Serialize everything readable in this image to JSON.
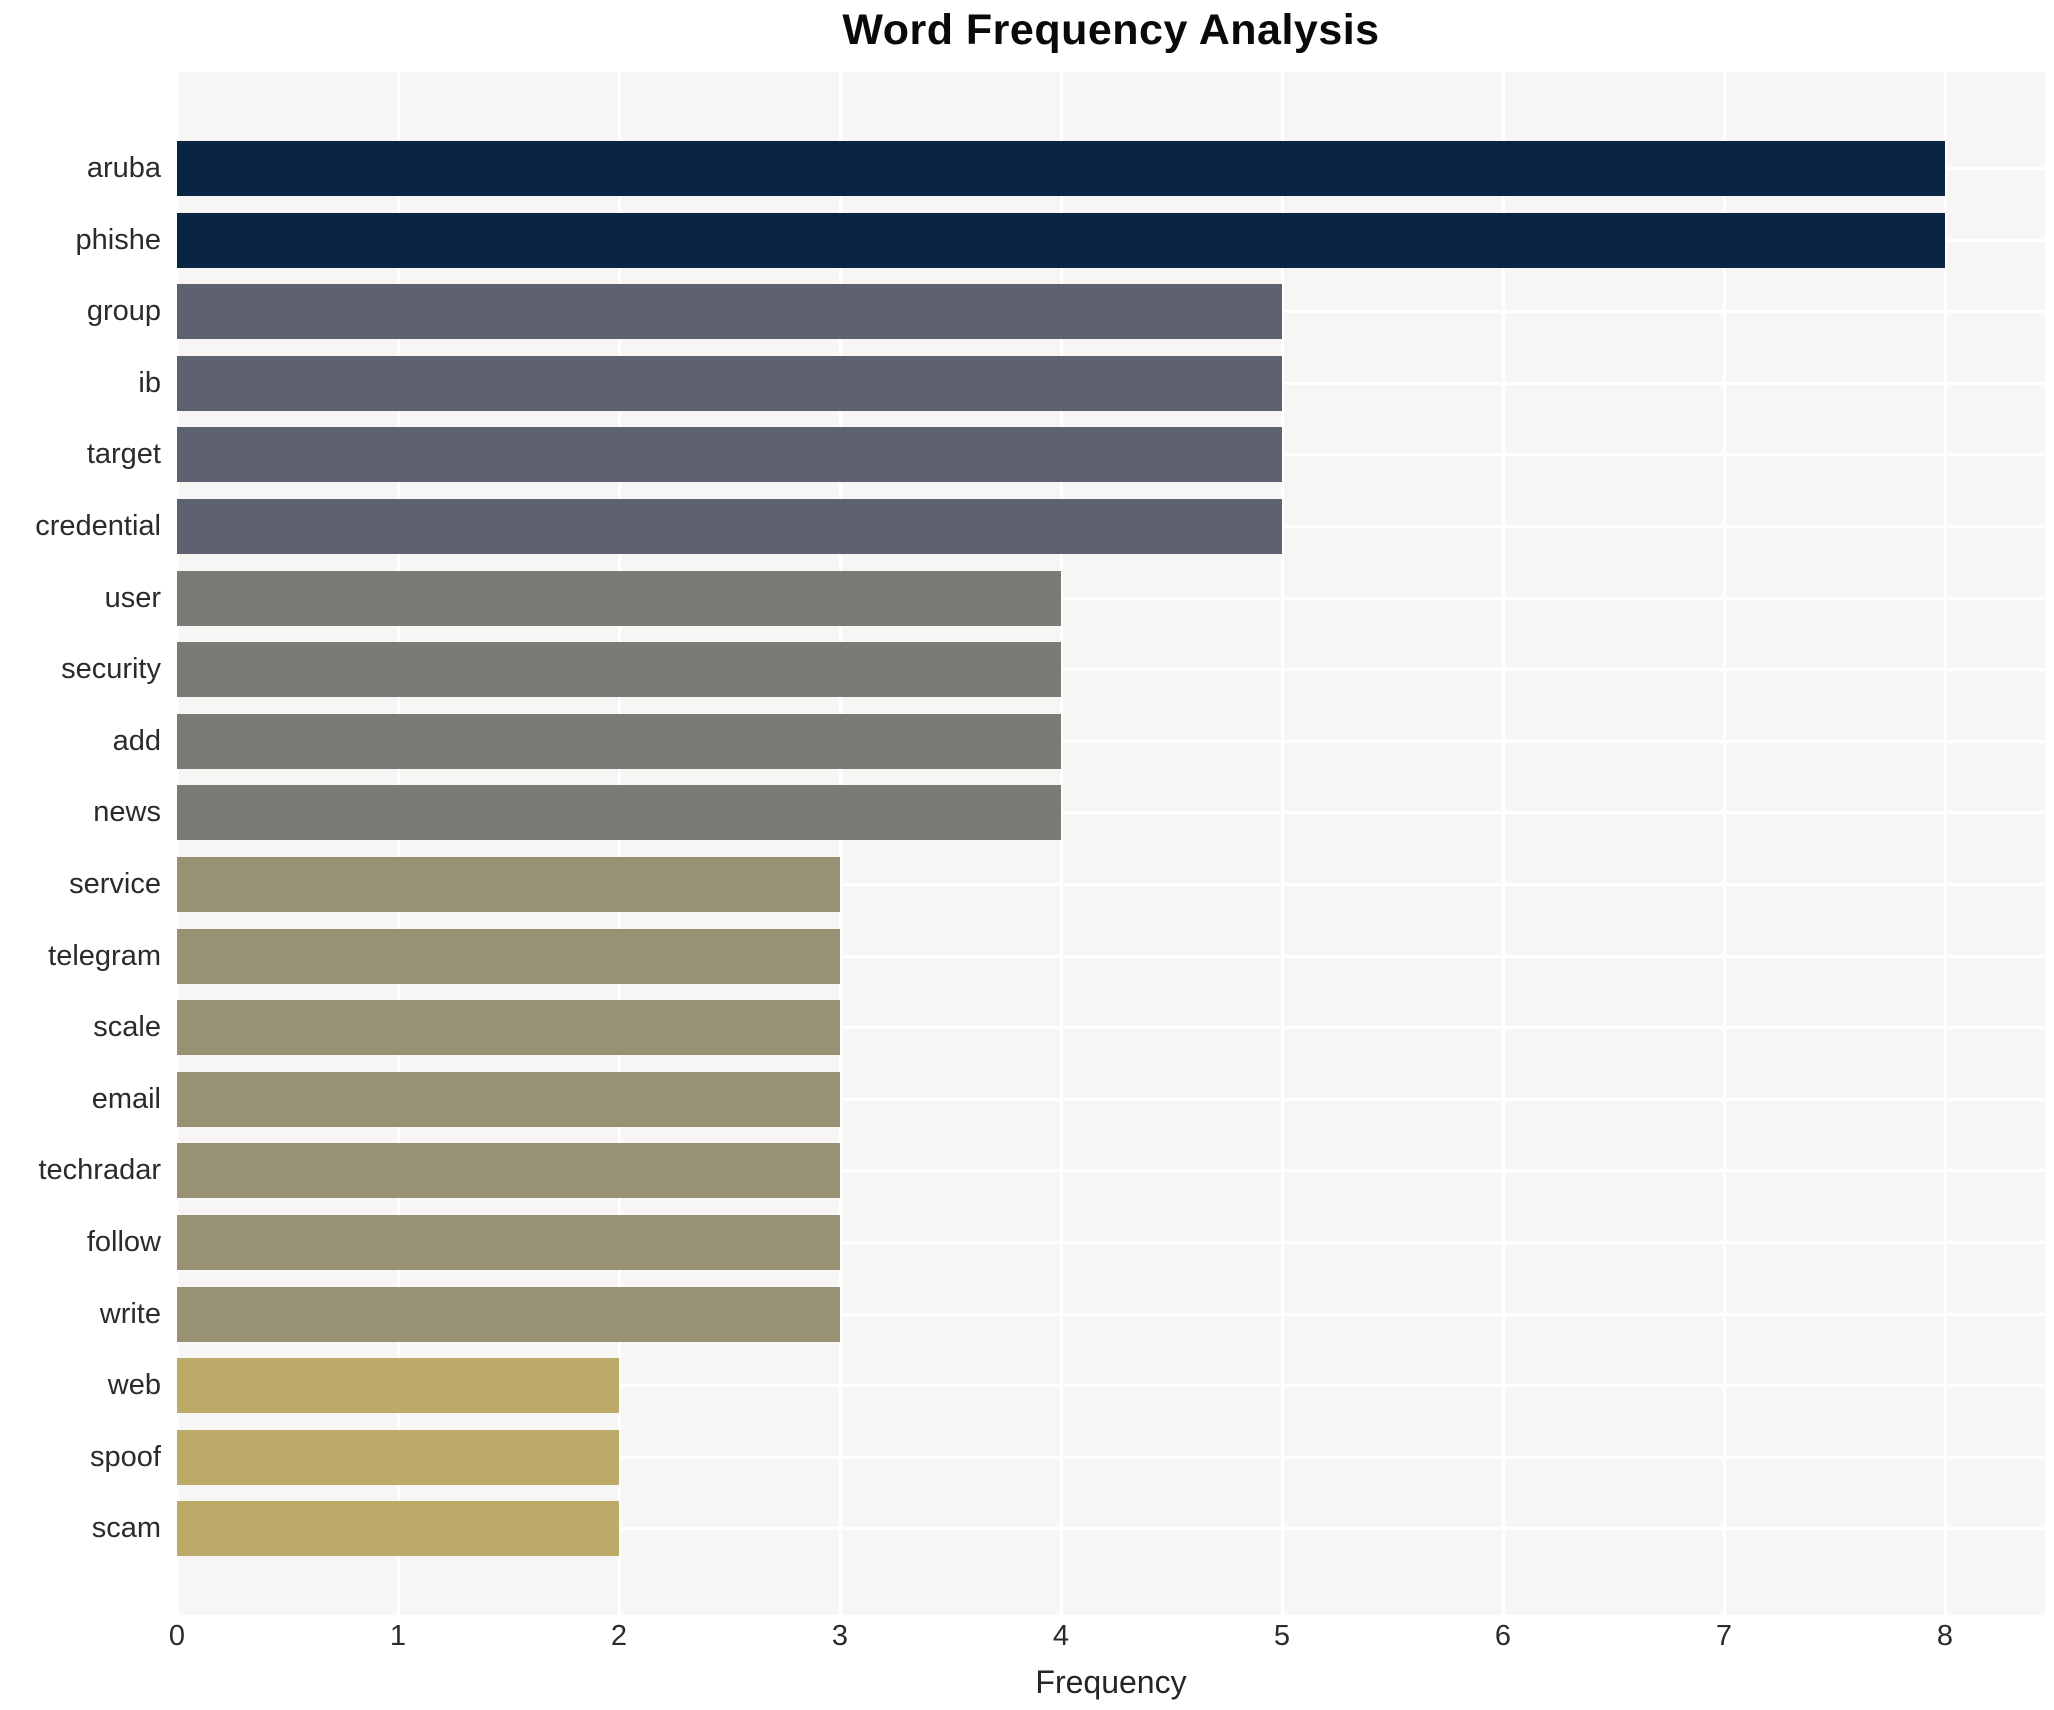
{
  "chart_data": {
    "type": "bar",
    "orientation": "horizontal",
    "title": "Word Frequency Analysis",
    "xlabel": "Frequency",
    "ylabel": "",
    "xlim": [
      0,
      8.45
    ],
    "xticks": [
      "0",
      "1",
      "2",
      "3",
      "4",
      "5",
      "6",
      "7",
      "8"
    ],
    "grid": "on",
    "legend": "none",
    "categories": [
      "aruba",
      "phishe",
      "group",
      "ib",
      "target",
      "credential",
      "user",
      "security",
      "add",
      "news",
      "service",
      "telegram",
      "scale",
      "email",
      "techradar",
      "follow",
      "write",
      "web",
      "spoof",
      "scam"
    ],
    "values": [
      8,
      8,
      5,
      5,
      5,
      5,
      4,
      4,
      4,
      4,
      3,
      3,
      3,
      3,
      3,
      3,
      3,
      2,
      2,
      2
    ],
    "bar_colors": [
      "#0a2444",
      "#0a2444",
      "#5e6270",
      "#5e6270",
      "#5e6270",
      "#5e6270",
      "#7b7a75",
      "#7b7a75",
      "#7b7a75",
      "#7b7a75",
      "#999173",
      "#999173",
      "#999173",
      "#999173",
      "#999173",
      "#999173",
      "#999173",
      "#bcaa68",
      "#bcaa68",
      "#bcaa68"
    ],
    "colors": {
      "value_8": "#0a2444",
      "value_5": "#5e6270",
      "value_4": "#7b7a75",
      "value_3": "#999173",
      "value_2": "#bcaa68",
      "plot_background": "#f7f6f4",
      "gridline": "#ffffff",
      "title_text": "#0a0a0a",
      "axis_text": "#2b2b2b"
    }
  }
}
